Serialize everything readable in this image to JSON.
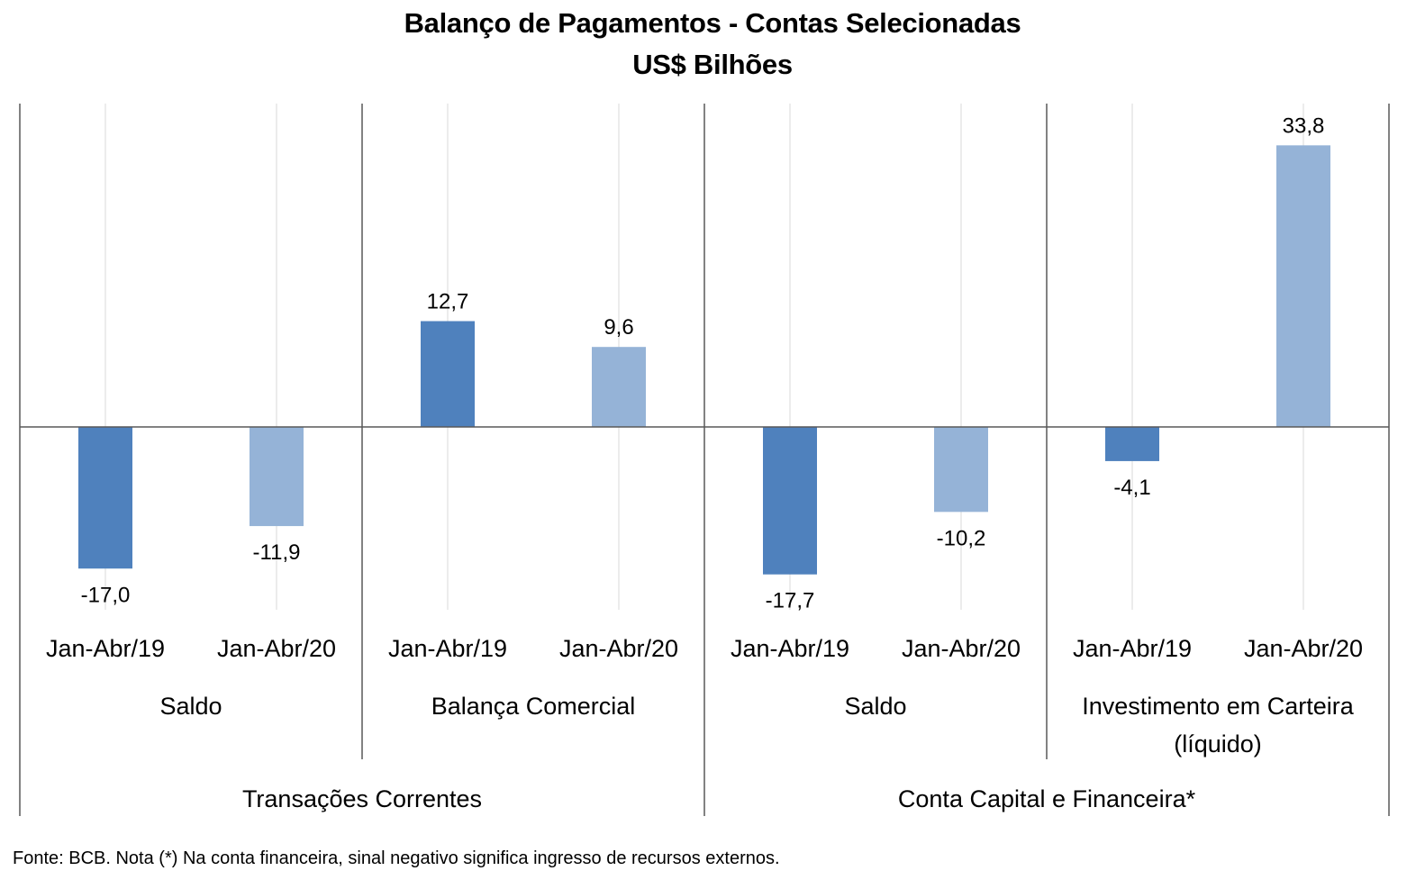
{
  "chart_data": {
    "type": "bar",
    "title": "Balanço de Pagamentos - Contas Selecionadas",
    "subtitle": "US$ Bilhões",
    "period_labels": [
      "Jan-Abr/19",
      "Jan-Abr/20"
    ],
    "groups": [
      {
        "name": "Transações Correntes",
        "subgroups": [
          {
            "name": "Saldo",
            "values": [
              -17.0,
              -11.9
            ],
            "labels": [
              "-17,0",
              "-11,9"
            ]
          },
          {
            "name": "Balança Comercial",
            "values": [
              12.7,
              9.6
            ],
            "labels": [
              "12,7",
              "9,6"
            ]
          }
        ]
      },
      {
        "name": "Conta Capital e Financeira*",
        "subgroups": [
          {
            "name": "Saldo",
            "values": [
              -17.7,
              -10.2
            ],
            "labels": [
              "-17,7",
              "-10,2"
            ]
          },
          {
            "name": "Investimento em Carteira (líquido)",
            "values": [
              -4.1,
              33.8
            ],
            "labels": [
              "-4,1",
              "33,8"
            ]
          }
        ]
      }
    ],
    "ylim": [
      -22,
      39
    ],
    "grid": true,
    "colors": {
      "Jan-Abr/19": "#4f81bd",
      "Jan-Abr/20": "#95b3d7",
      "axis": "#595959",
      "grid": "#d9d9d9"
    }
  },
  "footnote": "Fonte: BCB. Nota (*) Na conta financeira, sinal negativo significa ingresso de recursos externos."
}
